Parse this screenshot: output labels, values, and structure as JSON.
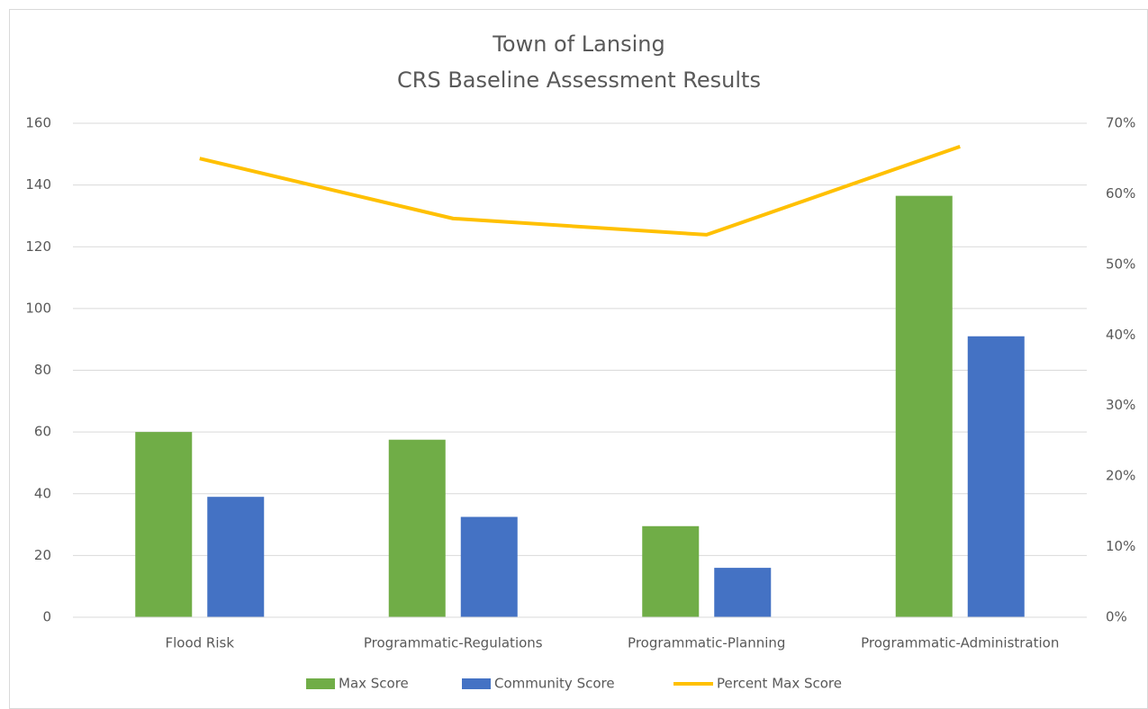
{
  "chart_data": {
    "type": "bar",
    "title": "Town of Lansing",
    "subtitle": "CRS Baseline Assessment Results",
    "categories": [
      "Flood Risk",
      "Programmatic-Regulations",
      "Programmatic-Planning",
      "Programmatic-Administration"
    ],
    "series": [
      {
        "name": "Max Score",
        "color": "#70ad47",
        "type": "bar",
        "values": [
          60,
          57.5,
          29.5,
          136.5
        ]
      },
      {
        "name": "Community Score",
        "color": "#4472c4",
        "type": "bar",
        "values": [
          39,
          32.5,
          16,
          91
        ]
      },
      {
        "name": "Percent Max Score",
        "color": "#ffc000",
        "type": "line",
        "axis": "y2",
        "values": [
          65,
          56.5,
          54.2,
          66.7
        ]
      }
    ],
    "ylim": [
      0,
      160
    ],
    "yticks": [
      0,
      20,
      40,
      60,
      80,
      100,
      120,
      140,
      160
    ],
    "y2lim": [
      0,
      70
    ],
    "y2ticks": [
      {
        "value": 0,
        "label": "0%"
      },
      {
        "value": 10,
        "label": "10%"
      },
      {
        "value": 20,
        "label": "20%"
      },
      {
        "value": 30,
        "label": "30%"
      },
      {
        "value": 40,
        "label": "40%"
      },
      {
        "value": 50,
        "label": "50%"
      },
      {
        "value": 60,
        "label": "60%"
      },
      {
        "value": 70,
        "label": "70%"
      }
    ],
    "grid": true,
    "legend": "bottom"
  }
}
